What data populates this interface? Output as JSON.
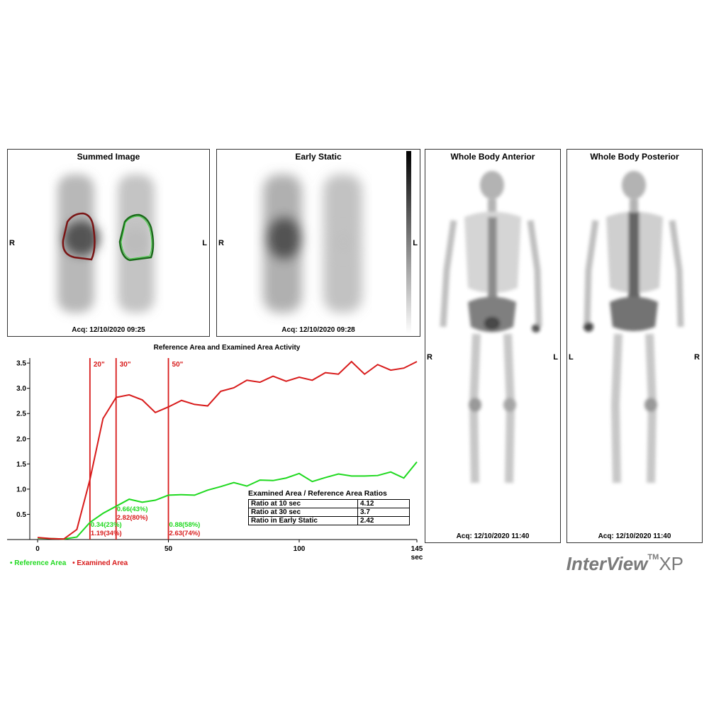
{
  "panels": {
    "summed": {
      "title": "Summed Image",
      "acq": "Acq: 12/10/2020 09:25",
      "left_label": "R",
      "right_label": "L"
    },
    "early": {
      "title": "Early Static",
      "acq": "Acq: 12/10/2020 09:28",
      "left_label": "R",
      "right_label": "L"
    },
    "anterior": {
      "title": "Whole Body Anterior",
      "acq": "Acq: 12/10/2020 11:40",
      "left_label": "R",
      "right_label": "L"
    },
    "posterior": {
      "title": "Whole Body Posterior",
      "acq": "Acq: 12/10/2020 11:40",
      "left_label": "L",
      "right_label": "R"
    }
  },
  "colors": {
    "reference": "#1fd91f",
    "examined": "#d81b1b",
    "roi_red": "#7a1515",
    "roi_green": "#1a6b1a"
  },
  "chart_data": {
    "type": "line",
    "title": "Reference Area and Examined Area Activity",
    "xlabel": "sec",
    "ylabel": "",
    "xlim": [
      -3,
      145
    ],
    "ylim": [
      0,
      3.6
    ],
    "x_ticks": [
      0,
      50,
      100,
      145
    ],
    "x_tick_labels": [
      "0",
      "50",
      "100",
      "145"
    ],
    "y_ticks": [
      0.5,
      1.0,
      1.5,
      2.0,
      2.5,
      3.0,
      3.5
    ],
    "y_tick_labels": [
      "0.5",
      "1.0",
      "1.5",
      "2.0",
      "2.5",
      "3.0",
      "3.5"
    ],
    "markers": [
      {
        "x": 20,
        "label": "20\""
      },
      {
        "x": 30,
        "label": "30\""
      },
      {
        "x": 50,
        "label": "50\""
      }
    ],
    "series": [
      {
        "name": "Reference Area",
        "x": [
          0,
          5,
          10,
          15,
          20,
          25,
          30,
          35,
          40,
          45,
          50,
          55,
          60,
          65,
          70,
          75,
          80,
          85,
          90,
          95,
          100,
          105,
          110,
          115,
          120,
          125,
          130,
          135,
          140,
          145
        ],
        "y": [
          0.03,
          0.02,
          0.01,
          0.05,
          0.34,
          0.52,
          0.66,
          0.8,
          0.74,
          0.78,
          0.88,
          0.89,
          0.88,
          0.98,
          1.05,
          1.13,
          1.06,
          1.18,
          1.17,
          1.22,
          1.31,
          1.15,
          1.23,
          1.3,
          1.26,
          1.26,
          1.27,
          1.34,
          1.22,
          1.54
        ]
      },
      {
        "name": "Examined Area",
        "x": [
          0,
          5,
          10,
          15,
          20,
          25,
          30,
          35,
          40,
          45,
          50,
          55,
          60,
          65,
          70,
          75,
          80,
          85,
          90,
          95,
          100,
          105,
          110,
          115,
          120,
          125,
          130,
          135,
          140,
          145
        ],
        "y": [
          0.04,
          0.02,
          0.01,
          0.2,
          1.19,
          2.4,
          2.82,
          2.87,
          2.77,
          2.52,
          2.63,
          2.76,
          2.68,
          2.65,
          2.94,
          3.01,
          3.16,
          3.12,
          3.24,
          3.14,
          3.22,
          3.16,
          3.31,
          3.28,
          3.53,
          3.28,
          3.47,
          3.36,
          3.4,
          3.53
        ]
      }
    ],
    "annotations": [
      {
        "x": 20,
        "y": 0.34,
        "text": "0.34(23%)",
        "series": "Reference Area"
      },
      {
        "x": 20,
        "y": 1.19,
        "text": "1.19(34%)",
        "series": "Examined Area"
      },
      {
        "x": 30,
        "y": 0.66,
        "text": "0.66(43%)",
        "series": "Reference Area"
      },
      {
        "x": 30,
        "y": 2.82,
        "text": "2.82(80%)",
        "series": "Examined Area"
      },
      {
        "x": 50,
        "y": 0.88,
        "text": "0.88(58%)",
        "series": "Reference Area"
      },
      {
        "x": 50,
        "y": 2.63,
        "text": "2.63(74%)",
        "series": "Examined Area"
      }
    ],
    "legend": [
      "• Reference Area",
      "• Examined Area"
    ],
    "legend_placement": "bottom-left",
    "grid": false
  },
  "ratios": {
    "title": "Examined Area / Reference Area Ratios",
    "rows": [
      {
        "label": "Ratio at 10 sec",
        "value": "4.12"
      },
      {
        "label": "Ratio at 30 sec",
        "value": "3.7"
      },
      {
        "label": "Ratio in Early Static",
        "value": "2.42"
      }
    ]
  },
  "logo": {
    "name": "InterView",
    "tm": "TM",
    "suffix": "XP"
  }
}
